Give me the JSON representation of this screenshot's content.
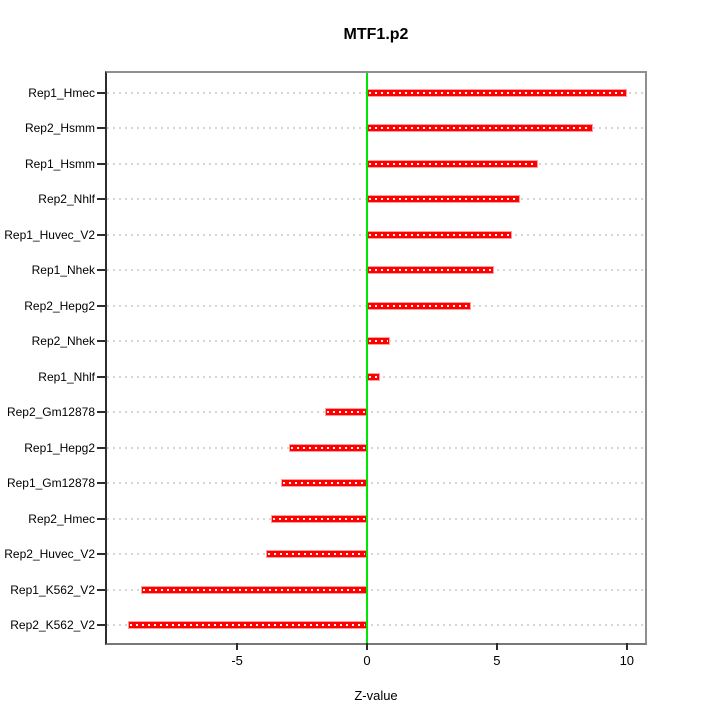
{
  "title": "MTF1.p2",
  "chart_data": {
    "type": "bar",
    "orientation": "horizontal",
    "title": "MTF1.p2",
    "xlabel": "Z-value",
    "categories": [
      "Rep1_Hmec",
      "Rep2_Hsmm",
      "Rep1_Hsmm",
      "Rep2_Nhlf",
      "Rep1_Huvec_V2",
      "Rep1_Nhek",
      "Rep2_Hepg2",
      "Rep2_Nhek",
      "Rep1_Nhlf",
      "Rep2_Gm12878",
      "Rep1_Hepg2",
      "Rep1_Gm12878",
      "Rep2_Hmec",
      "Rep2_Huvec_V2",
      "Rep1_K562_V2",
      "Rep2_K562_V2"
    ],
    "values": [
      10.0,
      8.7,
      6.6,
      5.9,
      5.6,
      4.9,
      4.0,
      0.9,
      0.5,
      -1.6,
      -3.0,
      -3.3,
      -3.7,
      -3.9,
      -8.7,
      -9.2
    ],
    "x_ticks": [
      "-5",
      "0",
      "5",
      "10"
    ],
    "x_tick_values": [
      -5,
      0,
      5,
      10
    ],
    "xlim": [
      -10.1,
      10.8
    ],
    "grid": true,
    "legend": "none",
    "colors": {
      "bar_fill": "#FF0000",
      "bar_border": "#FF9E9E",
      "zero_line": "#00E600",
      "gridline": "#D6D6D6",
      "axis_box": "#8F8F8F",
      "text": "#000000"
    }
  }
}
